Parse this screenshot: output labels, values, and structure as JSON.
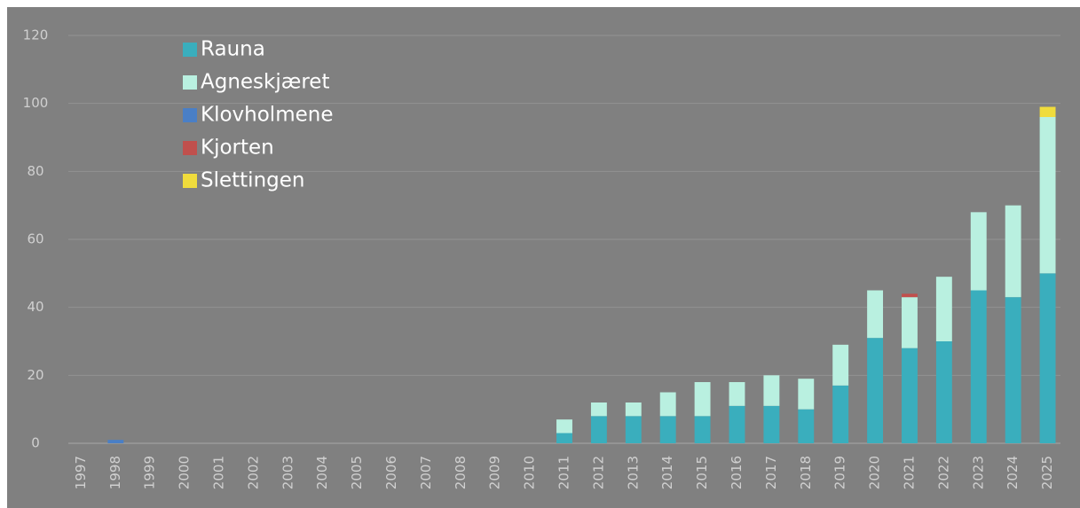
{
  "chart_data": {
    "type": "bar",
    "stacked": true,
    "categories": [
      "1997",
      "1998",
      "1999",
      "2000",
      "2001",
      "2002",
      "2003",
      "2004",
      "2005",
      "2006",
      "2007",
      "2008",
      "2009",
      "2010",
      "2011",
      "2012",
      "2013",
      "2014",
      "2015",
      "2016",
      "2017",
      "2018",
      "2019",
      "2020",
      "2021",
      "2022",
      "2023",
      "2024",
      "2025"
    ],
    "series": [
      {
        "name": "Rauna",
        "color": "#3aaebd",
        "values": [
          0,
          0,
          0,
          0,
          0,
          0,
          0,
          0,
          0,
          0,
          0,
          0,
          0,
          0,
          3,
          8,
          8,
          8,
          8,
          11,
          11,
          10,
          17,
          31,
          28,
          30,
          45,
          43,
          50
        ]
      },
      {
        "name": "Agneskjæret",
        "color": "#b9f0e0",
        "values": [
          0,
          0,
          0,
          0,
          0,
          0,
          0,
          0,
          0,
          0,
          0,
          0,
          0,
          0,
          4,
          4,
          4,
          7,
          10,
          7,
          9,
          9,
          12,
          14,
          15,
          19,
          23,
          27,
          46
        ]
      },
      {
        "name": "Klovholmene",
        "color": "#4a7fc6",
        "values": [
          0,
          1,
          0,
          0,
          0,
          0,
          0,
          0,
          0,
          0,
          0,
          0,
          0,
          0,
          0,
          0,
          0,
          0,
          0,
          0,
          0,
          0,
          0,
          0,
          0,
          0,
          0,
          0,
          0
        ]
      },
      {
        "name": "Kjorten",
        "color": "#c0504d",
        "values": [
          0,
          0,
          0,
          0,
          0,
          0,
          0,
          0,
          0,
          0,
          0,
          0,
          0,
          0,
          0,
          0,
          0,
          0,
          0,
          0,
          0,
          0,
          0,
          0,
          1,
          0,
          0,
          0,
          0
        ]
      },
      {
        "name": "Slettingen",
        "color": "#f0dc3c",
        "values": [
          0,
          0,
          0,
          0,
          0,
          0,
          0,
          0,
          0,
          0,
          0,
          0,
          0,
          0,
          0,
          0,
          0,
          0,
          0,
          0,
          0,
          0,
          0,
          0,
          0,
          0,
          0,
          0,
          3
        ]
      }
    ],
    "ylim": [
      0,
      120
    ],
    "yticks": [
      0,
      20,
      40,
      60,
      80,
      100,
      120
    ],
    "grid": true,
    "legend": "top-left"
  }
}
